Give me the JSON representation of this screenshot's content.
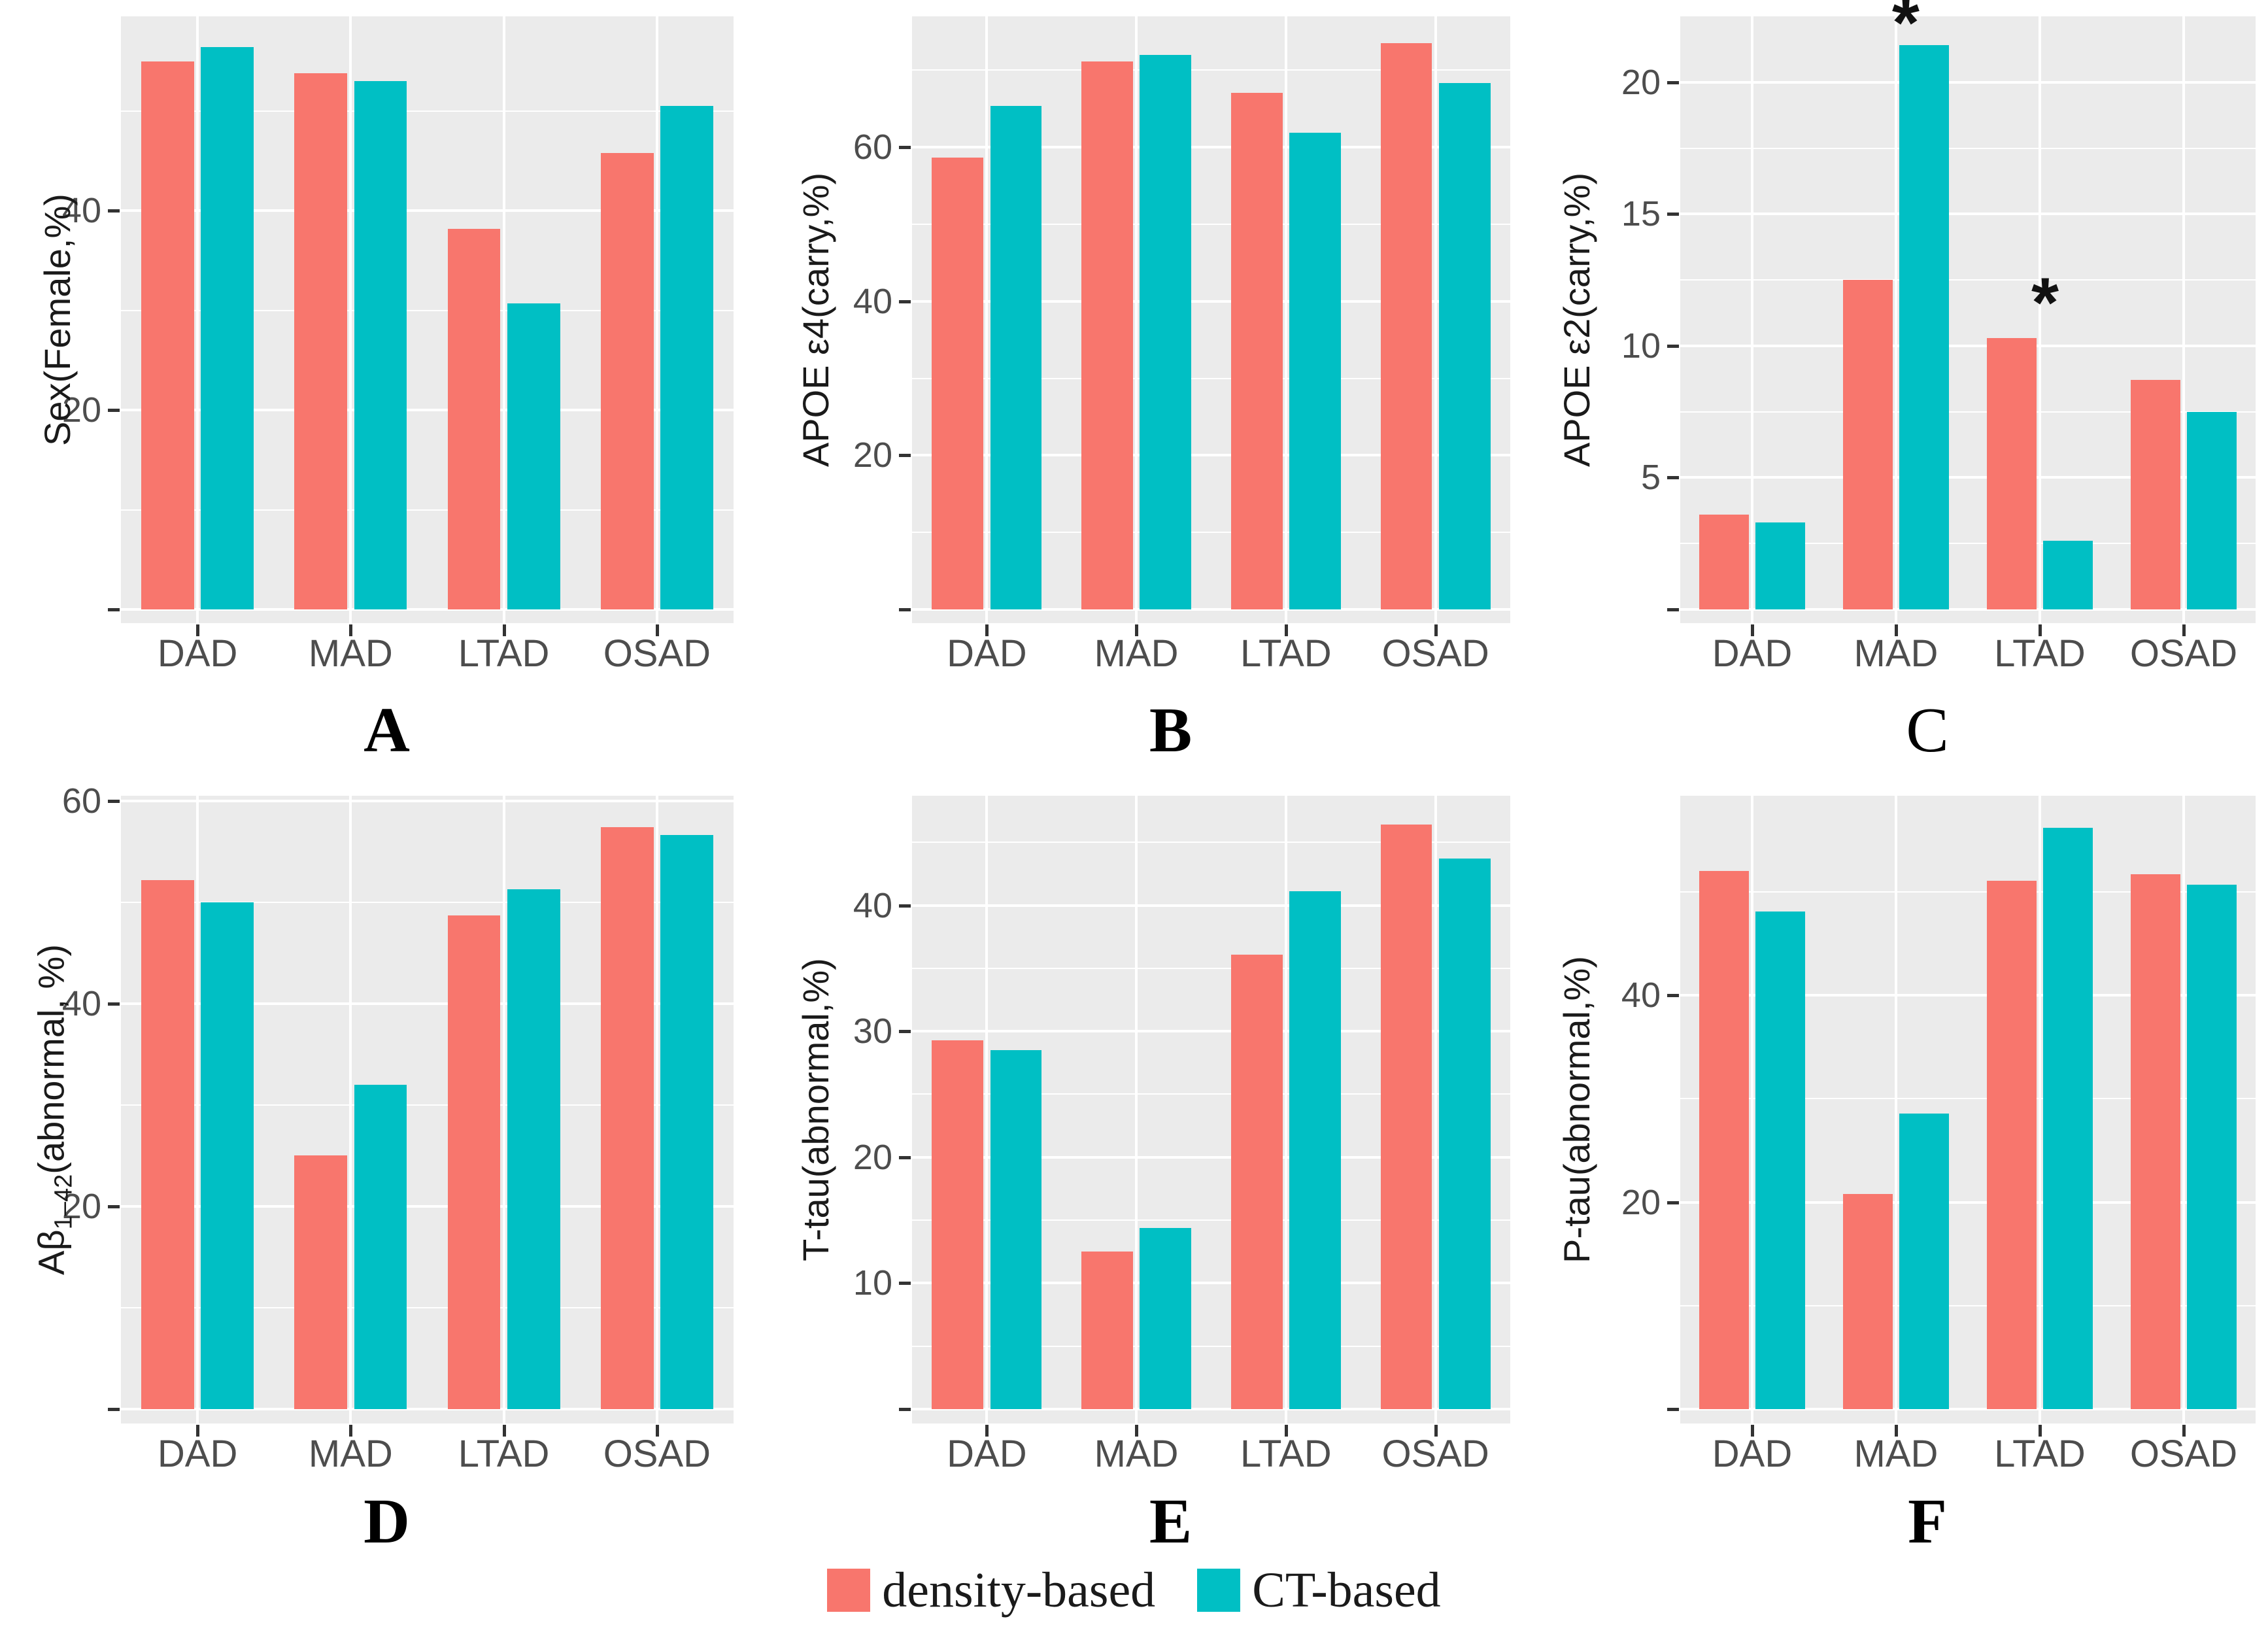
{
  "palette": {
    "density_color": "#F8766D",
    "ct_color": "#00BFC4",
    "panel_background": "#EBEBEB",
    "gridline_color": "#FFFFFF",
    "tick_text_color": "#4D4D4D",
    "axis_title_color": "#1A1A1A"
  },
  "legend": {
    "position": "bottom",
    "items": [
      {
        "key": "density",
        "label": "density-based",
        "color": "#F8766D"
      },
      {
        "key": "ct",
        "label": "CT-based",
        "color": "#00BFC4"
      }
    ]
  },
  "categories": [
    "DAD",
    "MAD",
    "LTAD",
    "OSAD"
  ],
  "chart_data": [
    {
      "type": "bar",
      "letter": "A",
      "letter_bold": true,
      "ylabel": "Sex(Female,%)",
      "categories": [
        "DAD",
        "MAD",
        "LTAD",
        "OSAD"
      ],
      "series": [
        {
          "name": "density-based",
          "values": [
            55.0,
            53.8,
            38.2,
            45.8
          ]
        },
        {
          "name": "CT-based",
          "values": [
            56.4,
            53.0,
            30.7,
            50.5
          ]
        }
      ],
      "yticks": [
        0,
        20,
        40
      ],
      "ylim": [
        0,
        59.5
      ],
      "grid": true,
      "annotations": []
    },
    {
      "type": "bar",
      "letter": "B",
      "letter_bold": true,
      "ylabel": "APOE ε4(carry,%)",
      "categories": [
        "DAD",
        "MAD",
        "LTAD",
        "OSAD"
      ],
      "series": [
        {
          "name": "density-based",
          "values": [
            58.7,
            71.1,
            67.1,
            73.5
          ]
        },
        {
          "name": "CT-based",
          "values": [
            65.4,
            72.0,
            61.9,
            68.3
          ]
        }
      ],
      "yticks": [
        0,
        20,
        40,
        60
      ],
      "ylim": [
        0,
        77
      ],
      "grid": true,
      "annotations": []
    },
    {
      "type": "bar",
      "letter": "C",
      "letter_bold": false,
      "ylabel": "APOE ε2(carry,%)",
      "categories": [
        "DAD",
        "MAD",
        "LTAD",
        "OSAD"
      ],
      "series": [
        {
          "name": "density-based",
          "values": [
            3.6,
            12.5,
            10.3,
            8.7
          ]
        },
        {
          "name": "CT-based",
          "values": [
            3.3,
            21.4,
            2.6,
            7.5
          ]
        }
      ],
      "yticks": [
        0,
        5,
        10,
        15,
        20
      ],
      "ylim": [
        0,
        22.5
      ],
      "grid": true,
      "annotations": [
        {
          "category": "MAD",
          "placement": "above-ct",
          "symbol": "*"
        },
        {
          "category": "LTAD",
          "placement": "between-above-density",
          "symbol": "*"
        }
      ]
    },
    {
      "type": "bar",
      "letter": "D",
      "letter_bold": true,
      "ylabel": "Aβ1–42(abnormal, %)",
      "ylabel_parts": {
        "pre": "Aβ",
        "sub": "1–42",
        "post": "(abnormal, %)"
      },
      "categories": [
        "DAD",
        "MAD",
        "LTAD",
        "OSAD"
      ],
      "series": [
        {
          "name": "density-based",
          "values": [
            52.2,
            25.0,
            48.7,
            57.4
          ]
        },
        {
          "name": "CT-based",
          "values": [
            50.0,
            32.0,
            51.3,
            56.6
          ]
        }
      ],
      "yticks": [
        0,
        20,
        40,
        60
      ],
      "ylim": [
        0,
        60.5
      ],
      "grid": true,
      "annotations": []
    },
    {
      "type": "bar",
      "letter": "E",
      "letter_bold": true,
      "ylabel": "T-tau(abnormal,%)",
      "categories": [
        "DAD",
        "MAD",
        "LTAD",
        "OSAD"
      ],
      "series": [
        {
          "name": "density-based",
          "values": [
            29.3,
            12.5,
            36.1,
            46.4
          ]
        },
        {
          "name": "CT-based",
          "values": [
            28.5,
            14.4,
            41.1,
            43.7
          ]
        }
      ],
      "yticks": [
        0,
        10,
        20,
        30,
        40
      ],
      "ylim": [
        0,
        48.7
      ],
      "grid": true,
      "annotations": []
    },
    {
      "type": "bar",
      "letter": "F",
      "letter_bold": true,
      "ylabel": "P-tau(abnormal,%)",
      "categories": [
        "DAD",
        "MAD",
        "LTAD",
        "OSAD"
      ],
      "series": [
        {
          "name": "density-based",
          "values": [
            52.0,
            20.8,
            51.1,
            51.7
          ]
        },
        {
          "name": "CT-based",
          "values": [
            48.1,
            28.6,
            56.2,
            50.7
          ]
        }
      ],
      "yticks": [
        0,
        20,
        40
      ],
      "ylim": [
        0,
        59.3
      ],
      "grid": true,
      "annotations": []
    }
  ]
}
